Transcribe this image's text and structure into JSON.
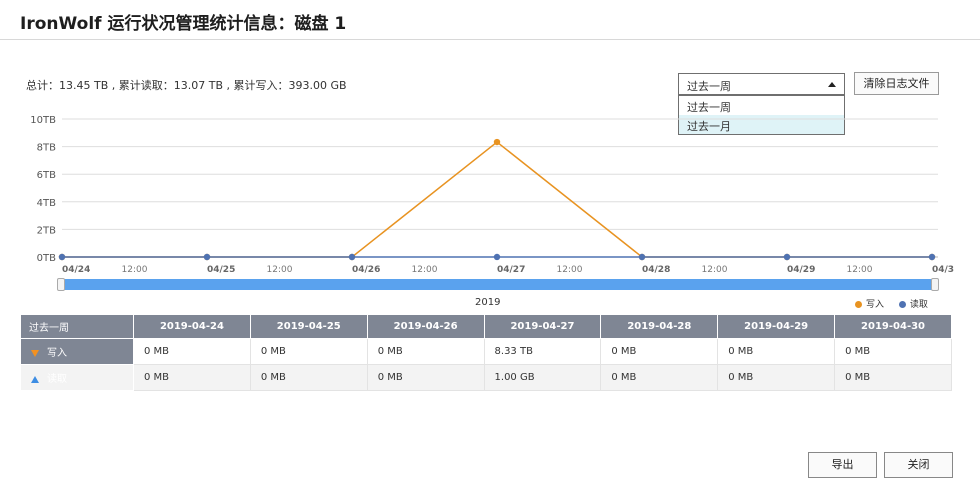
{
  "title": "IronWolf 运行状况管理统计信息：磁盘 1",
  "summary": "总计：13.45 TB , 累计读取：13.07 TB , 累计写入：393.00 GB",
  "range_select": {
    "selected": "过去一周",
    "options": [
      "过去一周",
      "过去一月"
    ],
    "highlighted_index": 1
  },
  "clear_log_label": "清除日志文件",
  "colors": {
    "write": "#e89321",
    "read": "#4f72b2",
    "slider": "#5aa2ee",
    "table_header": "#7f8694"
  },
  "chart_data": {
    "type": "line",
    "y_ticks": [
      "10TB",
      "8TB",
      "6TB",
      "4TB",
      "2TB",
      "0TB"
    ],
    "ylim": [
      0,
      10
    ],
    "y_unit": "TB",
    "x_labels": [
      "04/24",
      "12:00",
      "04/25",
      "12:00",
      "04/26",
      "12:00",
      "04/27",
      "12:00",
      "04/28",
      "12:00",
      "04/29",
      "12:00",
      "04/3"
    ],
    "x_dates": [
      "2019-04-24",
      "2019-04-25",
      "2019-04-26",
      "2019-04-27",
      "2019-04-28",
      "2019-04-29",
      "2019-04-30"
    ],
    "year_label": "2019",
    "grid": true,
    "legend_position": "bottom-right",
    "series": [
      {
        "name": "写入",
        "color": "#e89321",
        "values": [
          0,
          0,
          0,
          8.33,
          0,
          0,
          0
        ]
      },
      {
        "name": "读取",
        "color": "#4f72b2",
        "values": [
          0,
          0,
          0,
          0.001,
          0,
          0,
          0
        ]
      }
    ]
  },
  "table": {
    "corner": "过去一周",
    "columns": [
      "2019-04-24",
      "2019-04-25",
      "2019-04-26",
      "2019-04-27",
      "2019-04-28",
      "2019-04-29",
      "2019-04-30"
    ],
    "rows": [
      {
        "label": "写入",
        "icon": "arrow-down-icon",
        "cells": [
          "0 MB",
          "0 MB",
          "0 MB",
          "8.33 TB",
          "0 MB",
          "0 MB",
          "0 MB"
        ]
      },
      {
        "label": "读取",
        "icon": "arrow-up-icon",
        "cells": [
          "0 MB",
          "0 MB",
          "0 MB",
          "1.00 GB",
          "0 MB",
          "0 MB",
          "0 MB"
        ]
      }
    ]
  },
  "buttons": {
    "export": "导出",
    "close": "关闭"
  }
}
